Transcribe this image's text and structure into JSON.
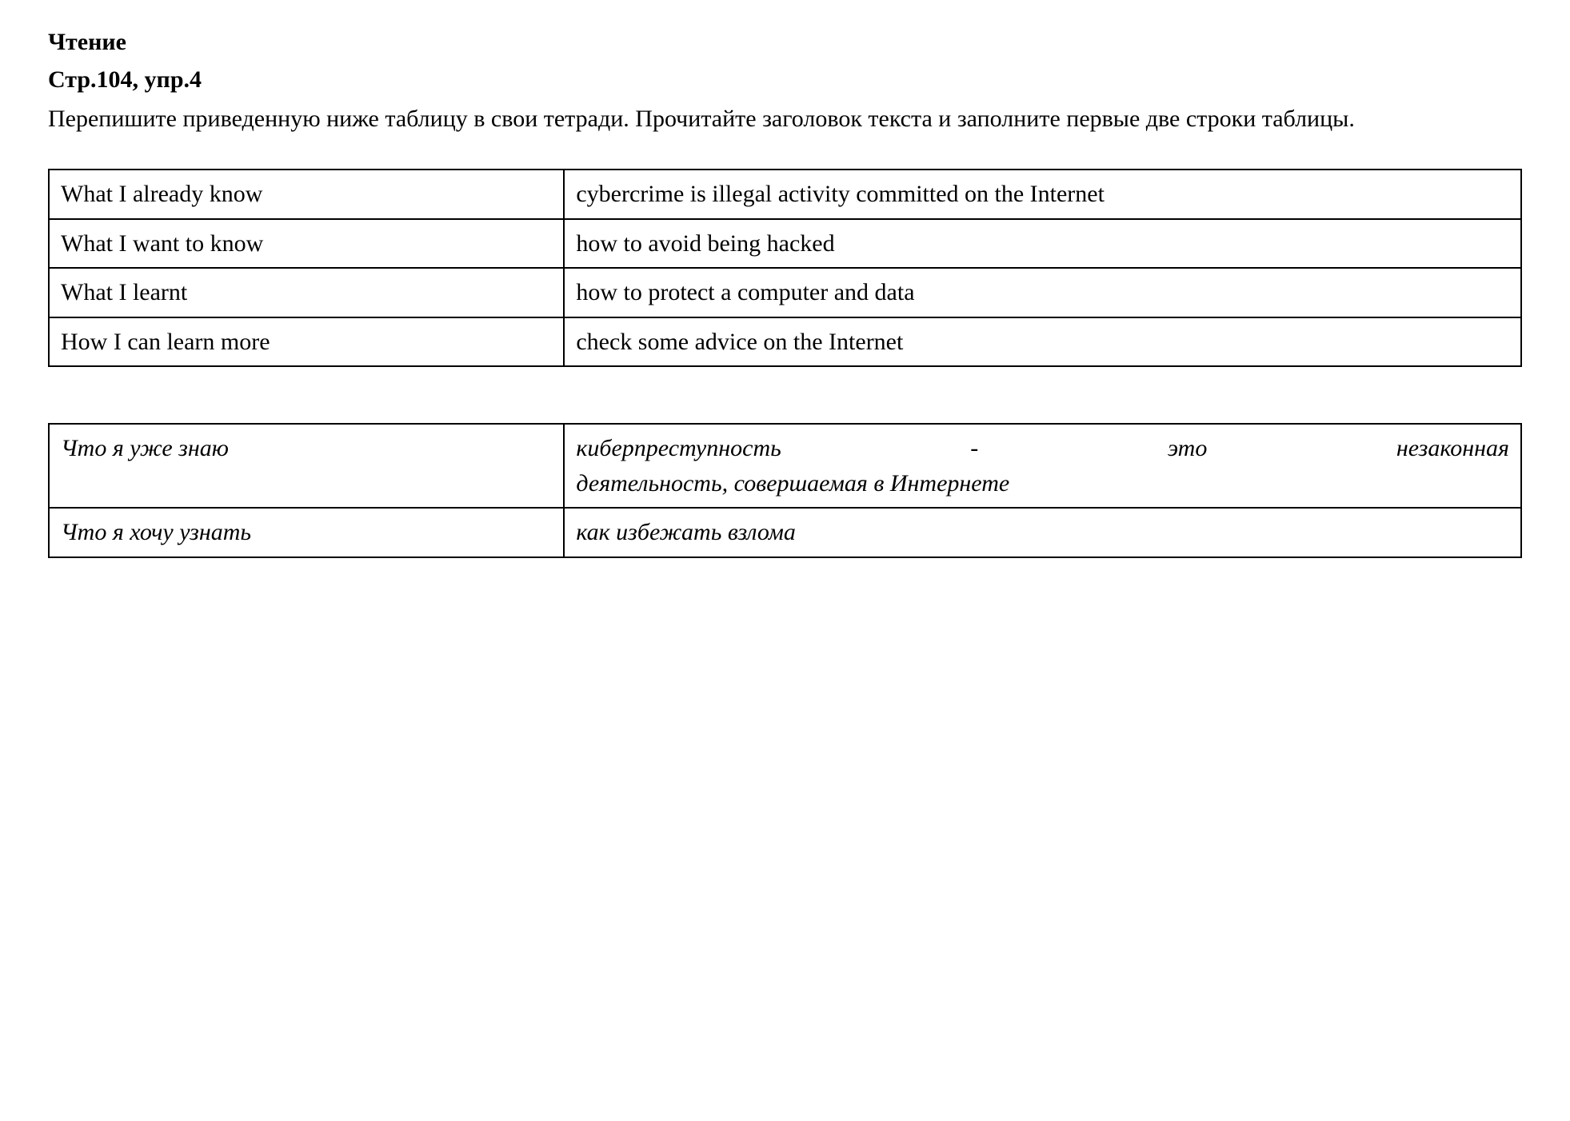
{
  "heading": "Чтение",
  "subheading": "Стр.104, упр.4",
  "description": "Перепишите приведенную ниже таблицу в свои тетради. Прочитайте заголовок текста и заполните первые две строки таблицы.",
  "table1": {
    "rows": [
      {
        "left": "What I already know",
        "right": "cybercrime is illegal activity committed on the Internet"
      },
      {
        "left": "What I want to know",
        "right": "how to avoid being hacked"
      },
      {
        "left": "What I learnt",
        "right": "how to protect a computer and data"
      },
      {
        "left": "How I can learn more",
        "right": "check some advice on the Internet"
      }
    ]
  },
  "table2": {
    "rows": [
      {
        "left": "Что я уже знаю",
        "right_line1": "киберпреступность - это незаконная",
        "right_line2": "деятельность, совершаемая в Интернете"
      },
      {
        "left": "Что я хочу узнать",
        "right": "как избежать взлома"
      }
    ]
  },
  "styling": {
    "font_family": "Times New Roman",
    "base_fontsize": 30,
    "heading_weight": "bold",
    "text_color": "#000000",
    "background_color": "#ffffff",
    "border_color": "#000000",
    "border_width": 2,
    "col_left_width_pct": 35,
    "col_right_width_pct": 65,
    "table_spacing": 70,
    "cell_padding_v": 8,
    "cell_padding_h": 14,
    "table2_style": "italic"
  }
}
